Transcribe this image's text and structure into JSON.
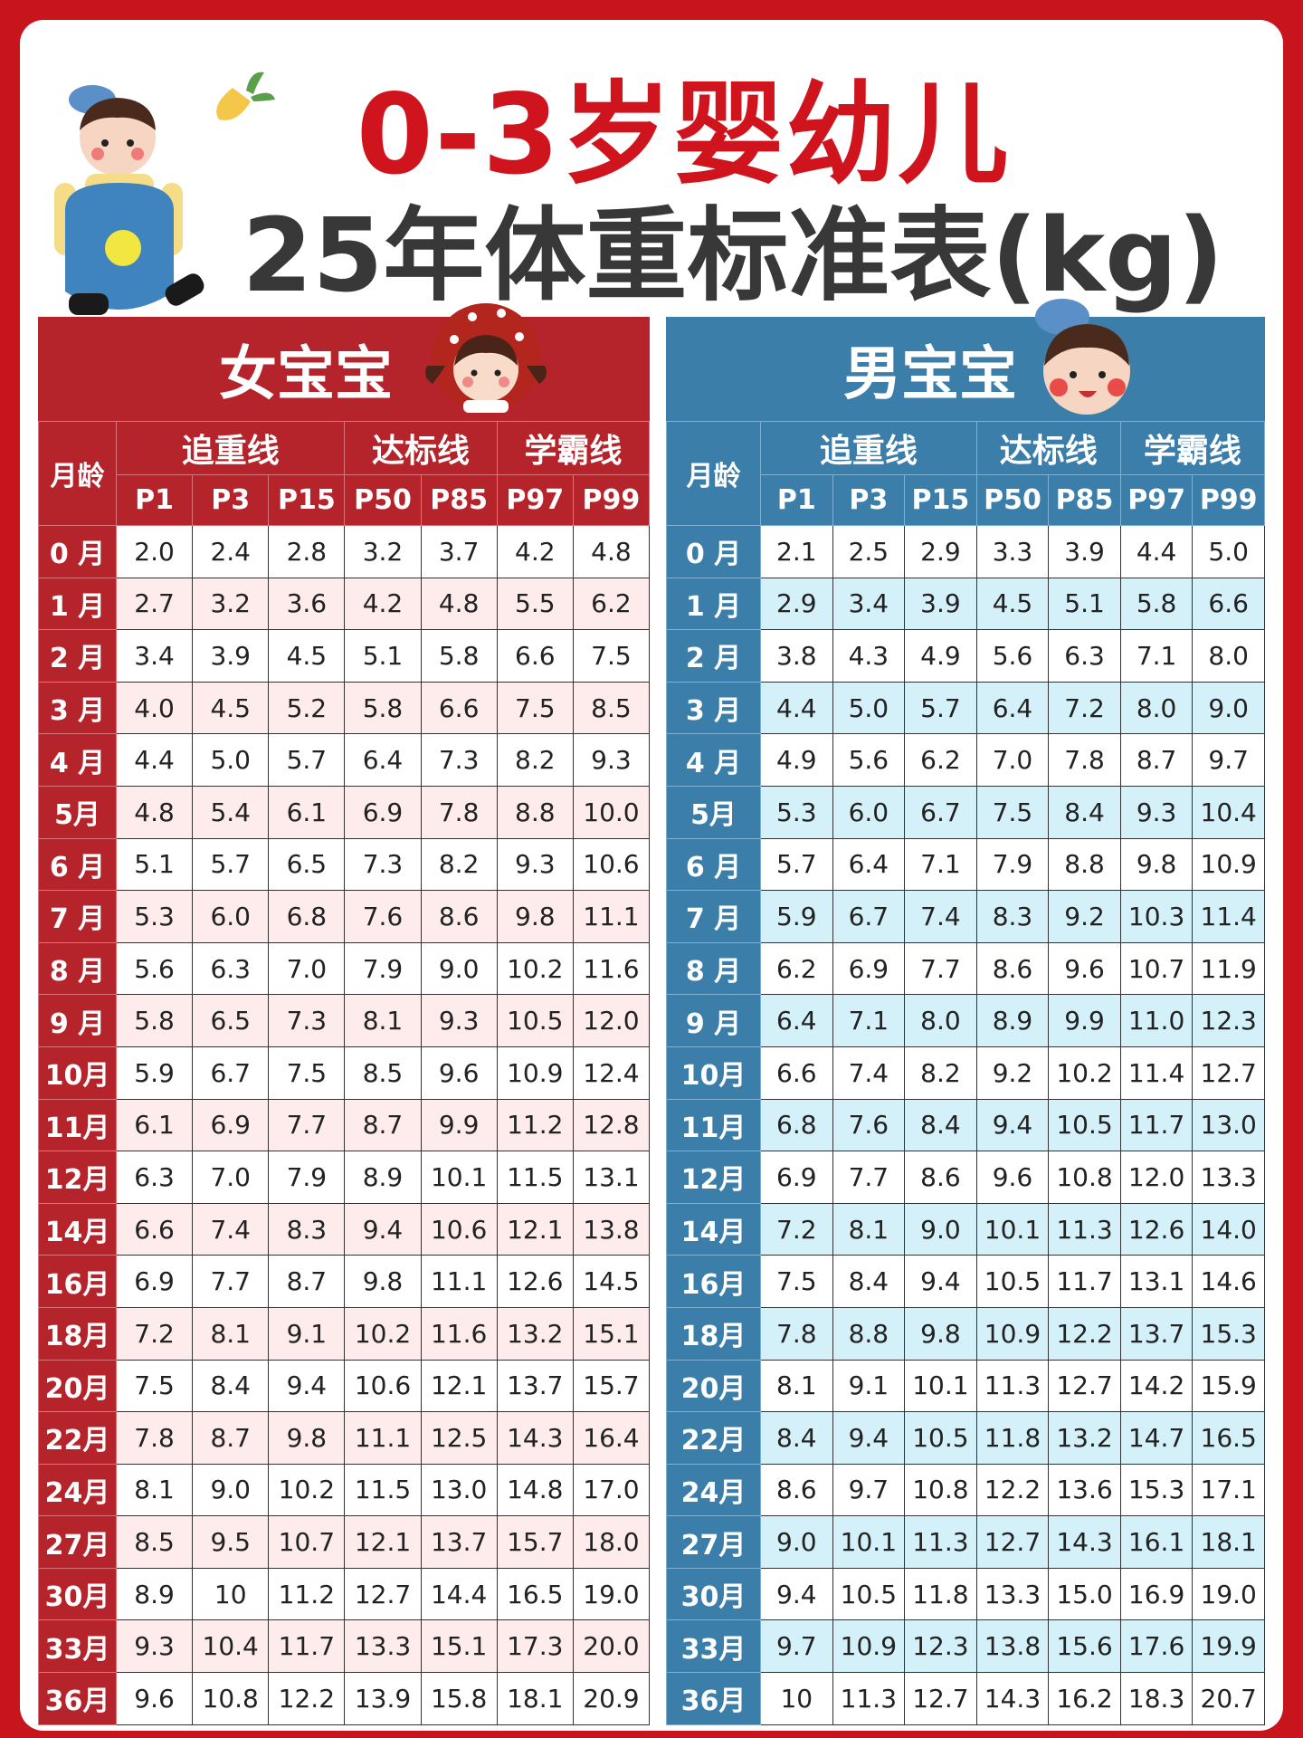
{
  "title": {
    "line1": "0-3岁婴幼儿",
    "line2": "25年体重标准表(kg)"
  },
  "icons": {
    "boy_character": "boy-cartoon-icon",
    "carrot": "carrot-icon",
    "girl_face": "girl-face-icon",
    "boy_face": "boy-face-icon"
  },
  "colors": {
    "frame": "#c8141c",
    "girl": "#b5232b",
    "boy": "#3a7ea9",
    "girl_alt_row": "#fdeceb",
    "boy_alt_row": "#d4f0f8"
  },
  "headers": {
    "age": "月龄",
    "groups": [
      "追重线",
      "达标线",
      "学霸线"
    ],
    "percentiles": [
      "P1",
      "P3",
      "P15",
      "P50",
      "P85",
      "P97",
      "P99"
    ]
  },
  "girl": {
    "title": "女宝宝",
    "rows": [
      [
        "0 月",
        "2.0",
        "2.4",
        "2.8",
        "3.2",
        "3.7",
        "4.2",
        "4.8"
      ],
      [
        "1 月",
        "2.7",
        "3.2",
        "3.6",
        "4.2",
        "4.8",
        "5.5",
        "6.2"
      ],
      [
        "2 月",
        "3.4",
        "3.9",
        "4.5",
        "5.1",
        "5.8",
        "6.6",
        "7.5"
      ],
      [
        "3 月",
        "4.0",
        "4.5",
        "5.2",
        "5.8",
        "6.6",
        "7.5",
        "8.5"
      ],
      [
        "4 月",
        "4.4",
        "5.0",
        "5.7",
        "6.4",
        "7.3",
        "8.2",
        "9.3"
      ],
      [
        "5月",
        "4.8",
        "5.4",
        "6.1",
        "6.9",
        "7.8",
        "8.8",
        "10.0"
      ],
      [
        "6 月",
        "5.1",
        "5.7",
        "6.5",
        "7.3",
        "8.2",
        "9.3",
        "10.6"
      ],
      [
        "7 月",
        "5.3",
        "6.0",
        "6.8",
        "7.6",
        "8.6",
        "9.8",
        "11.1"
      ],
      [
        "8 月",
        "5.6",
        "6.3",
        "7.0",
        "7.9",
        "9.0",
        "10.2",
        "11.6"
      ],
      [
        "9 月",
        "5.8",
        "6.5",
        "7.3",
        "8.1",
        "9.3",
        "10.5",
        "12.0"
      ],
      [
        "10月",
        "5.9",
        "6.7",
        "7.5",
        "8.5",
        "9.6",
        "10.9",
        "12.4"
      ],
      [
        "11月",
        "6.1",
        "6.9",
        "7.7",
        "8.7",
        "9.9",
        "11.2",
        "12.8"
      ],
      [
        "12月",
        "6.3",
        "7.0",
        "7.9",
        "8.9",
        "10.1",
        "11.5",
        "13.1"
      ],
      [
        "14月",
        "6.6",
        "7.4",
        "8.3",
        "9.4",
        "10.6",
        "12.1",
        "13.8"
      ],
      [
        "16月",
        "6.9",
        "7.7",
        "8.7",
        "9.8",
        "11.1",
        "12.6",
        "14.5"
      ],
      [
        "18月",
        "7.2",
        "8.1",
        "9.1",
        "10.2",
        "11.6",
        "13.2",
        "15.1"
      ],
      [
        "20月",
        "7.5",
        "8.4",
        "9.4",
        "10.6",
        "12.1",
        "13.7",
        "15.7"
      ],
      [
        "22月",
        "7.8",
        "8.7",
        "9.8",
        "11.1",
        "12.5",
        "14.3",
        "16.4"
      ],
      [
        "24月",
        "8.1",
        "9.0",
        "10.2",
        "11.5",
        "13.0",
        "14.8",
        "17.0"
      ],
      [
        "27月",
        "8.5",
        "9.5",
        "10.7",
        "12.1",
        "13.7",
        "15.7",
        "18.0"
      ],
      [
        "30月",
        "8.9",
        "10",
        "11.2",
        "12.7",
        "14.4",
        "16.5",
        "19.0"
      ],
      [
        "33月",
        "9.3",
        "10.4",
        "11.7",
        "13.3",
        "15.1",
        "17.3",
        "20.0"
      ],
      [
        "36月",
        "9.6",
        "10.8",
        "12.2",
        "13.9",
        "15.8",
        "18.1",
        "20.9"
      ]
    ]
  },
  "boy": {
    "title": "男宝宝",
    "rows": [
      [
        "0 月",
        "2.1",
        "2.5",
        "2.9",
        "3.3",
        "3.9",
        "4.4",
        "5.0"
      ],
      [
        "1 月",
        "2.9",
        "3.4",
        "3.9",
        "4.5",
        "5.1",
        "5.8",
        "6.6"
      ],
      [
        "2 月",
        "3.8",
        "4.3",
        "4.9",
        "5.6",
        "6.3",
        "7.1",
        "8.0"
      ],
      [
        "3 月",
        "4.4",
        "5.0",
        "5.7",
        "6.4",
        "7.2",
        "8.0",
        "9.0"
      ],
      [
        "4 月",
        "4.9",
        "5.6",
        "6.2",
        "7.0",
        "7.8",
        "8.7",
        "9.7"
      ],
      [
        "5月",
        "5.3",
        "6.0",
        "6.7",
        "7.5",
        "8.4",
        "9.3",
        "10.4"
      ],
      [
        "6 月",
        "5.7",
        "6.4",
        "7.1",
        "7.9",
        "8.8",
        "9.8",
        "10.9"
      ],
      [
        "7 月",
        "5.9",
        "6.7",
        "7.4",
        "8.3",
        "9.2",
        "10.3",
        "11.4"
      ],
      [
        "8 月",
        "6.2",
        "6.9",
        "7.7",
        "8.6",
        "9.6",
        "10.7",
        "11.9"
      ],
      [
        "9 月",
        "6.4",
        "7.1",
        "8.0",
        "8.9",
        "9.9",
        "11.0",
        "12.3"
      ],
      [
        "10月",
        "6.6",
        "7.4",
        "8.2",
        "9.2",
        "10.2",
        "11.4",
        "12.7"
      ],
      [
        "11月",
        "6.8",
        "7.6",
        "8.4",
        "9.4",
        "10.5",
        "11.7",
        "13.0"
      ],
      [
        "12月",
        "6.9",
        "7.7",
        "8.6",
        "9.6",
        "10.8",
        "12.0",
        "13.3"
      ],
      [
        "14月",
        "7.2",
        "8.1",
        "9.0",
        "10.1",
        "11.3",
        "12.6",
        "14.0"
      ],
      [
        "16月",
        "7.5",
        "8.4",
        "9.4",
        "10.5",
        "11.7",
        "13.1",
        "14.6"
      ],
      [
        "18月",
        "7.8",
        "8.8",
        "9.8",
        "10.9",
        "12.2",
        "13.7",
        "15.3"
      ],
      [
        "20月",
        "8.1",
        "9.1",
        "10.1",
        "11.3",
        "12.7",
        "14.2",
        "15.9"
      ],
      [
        "22月",
        "8.4",
        "9.4",
        "10.5",
        "11.8",
        "13.2",
        "14.7",
        "16.5"
      ],
      [
        "24月",
        "8.6",
        "9.7",
        "10.8",
        "12.2",
        "13.6",
        "15.3",
        "17.1"
      ],
      [
        "27月",
        "9.0",
        "10.1",
        "11.3",
        "12.7",
        "14.3",
        "16.1",
        "18.1"
      ],
      [
        "30月",
        "9.4",
        "10.5",
        "11.8",
        "13.3",
        "15.0",
        "16.9",
        "19.0"
      ],
      [
        "33月",
        "9.7",
        "10.9",
        "12.3",
        "13.8",
        "15.6",
        "17.6",
        "19.9"
      ],
      [
        "36月",
        "10",
        "11.3",
        "12.7",
        "14.3",
        "16.2",
        "18.3",
        "20.7"
      ]
    ]
  }
}
